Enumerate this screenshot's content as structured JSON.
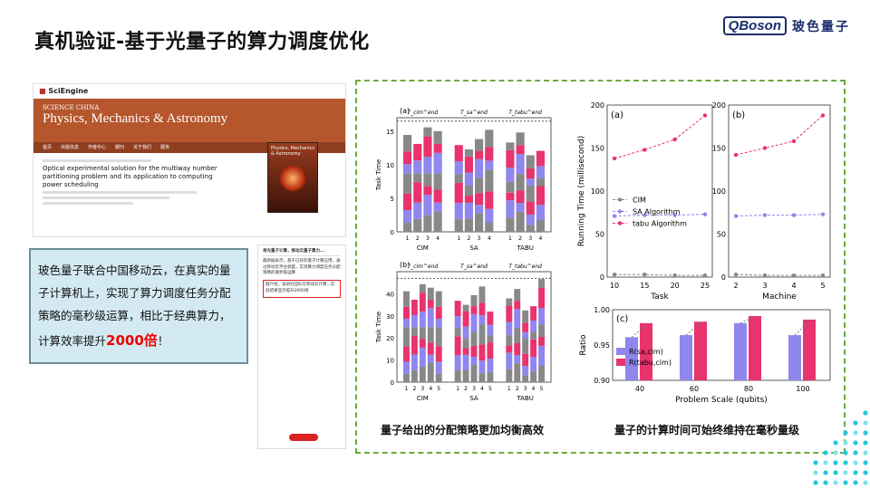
{
  "title": "真机验证-基于光量子的算力调度优化",
  "logo": {
    "mark": "QBoson",
    "cn": "玻色量子"
  },
  "screenshot": {
    "brand": "SciEngine",
    "journal_small": "SCIENCE CHINA",
    "journal": "Physics, Mechanics & Astronomy",
    "nav": [
      "首页",
      "出版信息",
      "作者中心",
      "期刊",
      "关于我们",
      "服务"
    ],
    "article_title": "Optical experimental solution for the multiway number partitioning problem and its application to computing power scheduling",
    "cover_title": "Physics, Mechanics & Astronomy"
  },
  "wechat": {
    "header": "将光量子计算，移动云量子算力...",
    "p1": "最新据表示，基于已有的量子计算应用，通过移动云平台调度，实现算力调度任务分配策略的毫秒级运算",
    "p2": "据介绍，该研究团队在移动云计算...实验结果显示提升2000倍"
  },
  "textbox": {
    "body": "玻色量子联合中国移动云，在真实的量子计算机上，实现了算力调度任务分配策略的毫秒级运算，相比于经典算力，计算效率提升",
    "highlight": "2000倍",
    "end": "！"
  },
  "captions": {
    "left": "量子给出的分配策略更加均衡高效",
    "right": "量子的计算时间可始终维持在毫秒量级"
  },
  "colors": {
    "cim": "#888888",
    "sa": "#8f86ee",
    "tabu": "#e8336d",
    "box_bg": "#d4eaf2",
    "dash": "#6aab3d"
  },
  "chart_data": [
    {
      "type": "bar",
      "panel": "(a)",
      "ylabel": "Task Time",
      "groups": [
        "CIM",
        "SA",
        "TABU"
      ],
      "categories": [
        "1",
        "2",
        "3",
        "4"
      ],
      "ylim": [
        0,
        17
      ],
      "yticks": [
        0,
        5,
        10,
        15
      ],
      "annotations": [
        "T_cim^end",
        "T_sa^end",
        "T_tabu^end"
      ]
    },
    {
      "type": "bar",
      "panel": "(b)",
      "ylabel": "Task Time",
      "groups": [
        "CIM",
        "SA",
        "TABU"
      ],
      "categories": [
        "1",
        "2",
        "3",
        "4",
        "5"
      ],
      "ylim": [
        0,
        50
      ],
      "yticks": [
        0,
        10,
        20,
        30,
        40
      ],
      "annotations": [
        "T_cim^end",
        "T_sa^end",
        "T_tabu^end"
      ]
    },
    {
      "type": "line",
      "panel": "(a)",
      "xlabel": "Task",
      "ylabel": "Running Time (millisecond)",
      "x": [
        10,
        15,
        20,
        25
      ],
      "ylim": [
        0,
        200
      ],
      "yticks": [
        0,
        50,
        100,
        150,
        200
      ],
      "series": [
        {
          "name": "CIM",
          "values": [
            3,
            3,
            2,
            2
          ]
        },
        {
          "name": "SA Algorithm",
          "values": [
            71,
            72,
            72,
            73
          ]
        },
        {
          "name": "tabu Algorithm",
          "values": [
            138,
            148,
            160,
            188
          ]
        }
      ]
    },
    {
      "type": "line",
      "panel": "(b)",
      "xlabel": "Machine",
      "x": [
        2,
        3,
        4,
        5
      ],
      "ylim": [
        0,
        200
      ],
      "yticks": [
        0,
        50,
        100,
        150,
        200
      ],
      "series": [
        {
          "name": "CIM",
          "values": [
            3,
            2,
            2,
            2
          ]
        },
        {
          "name": "SA Algorithm",
          "values": [
            71,
            72,
            72,
            73
          ]
        },
        {
          "name": "tabu Algorithm",
          "values": [
            142,
            150,
            158,
            188
          ]
        }
      ]
    },
    {
      "type": "bar",
      "panel": "(c)",
      "xlabel": "Problem Scale (qubits)",
      "ylabel": "Ratio",
      "categories": [
        "40",
        "60",
        "80",
        "100"
      ],
      "ylim": [
        0.9,
        1.0
      ],
      "yticks": [
        0.9,
        0.95,
        1.0
      ],
      "series": [
        {
          "name": "R(sa,cim)",
          "values": [
            0.961,
            0.964,
            0.981,
            0.964
          ]
        },
        {
          "name": "R(tabu,cim)",
          "values": [
            0.981,
            0.983,
            0.991,
            0.986
          ]
        }
      ]
    }
  ]
}
